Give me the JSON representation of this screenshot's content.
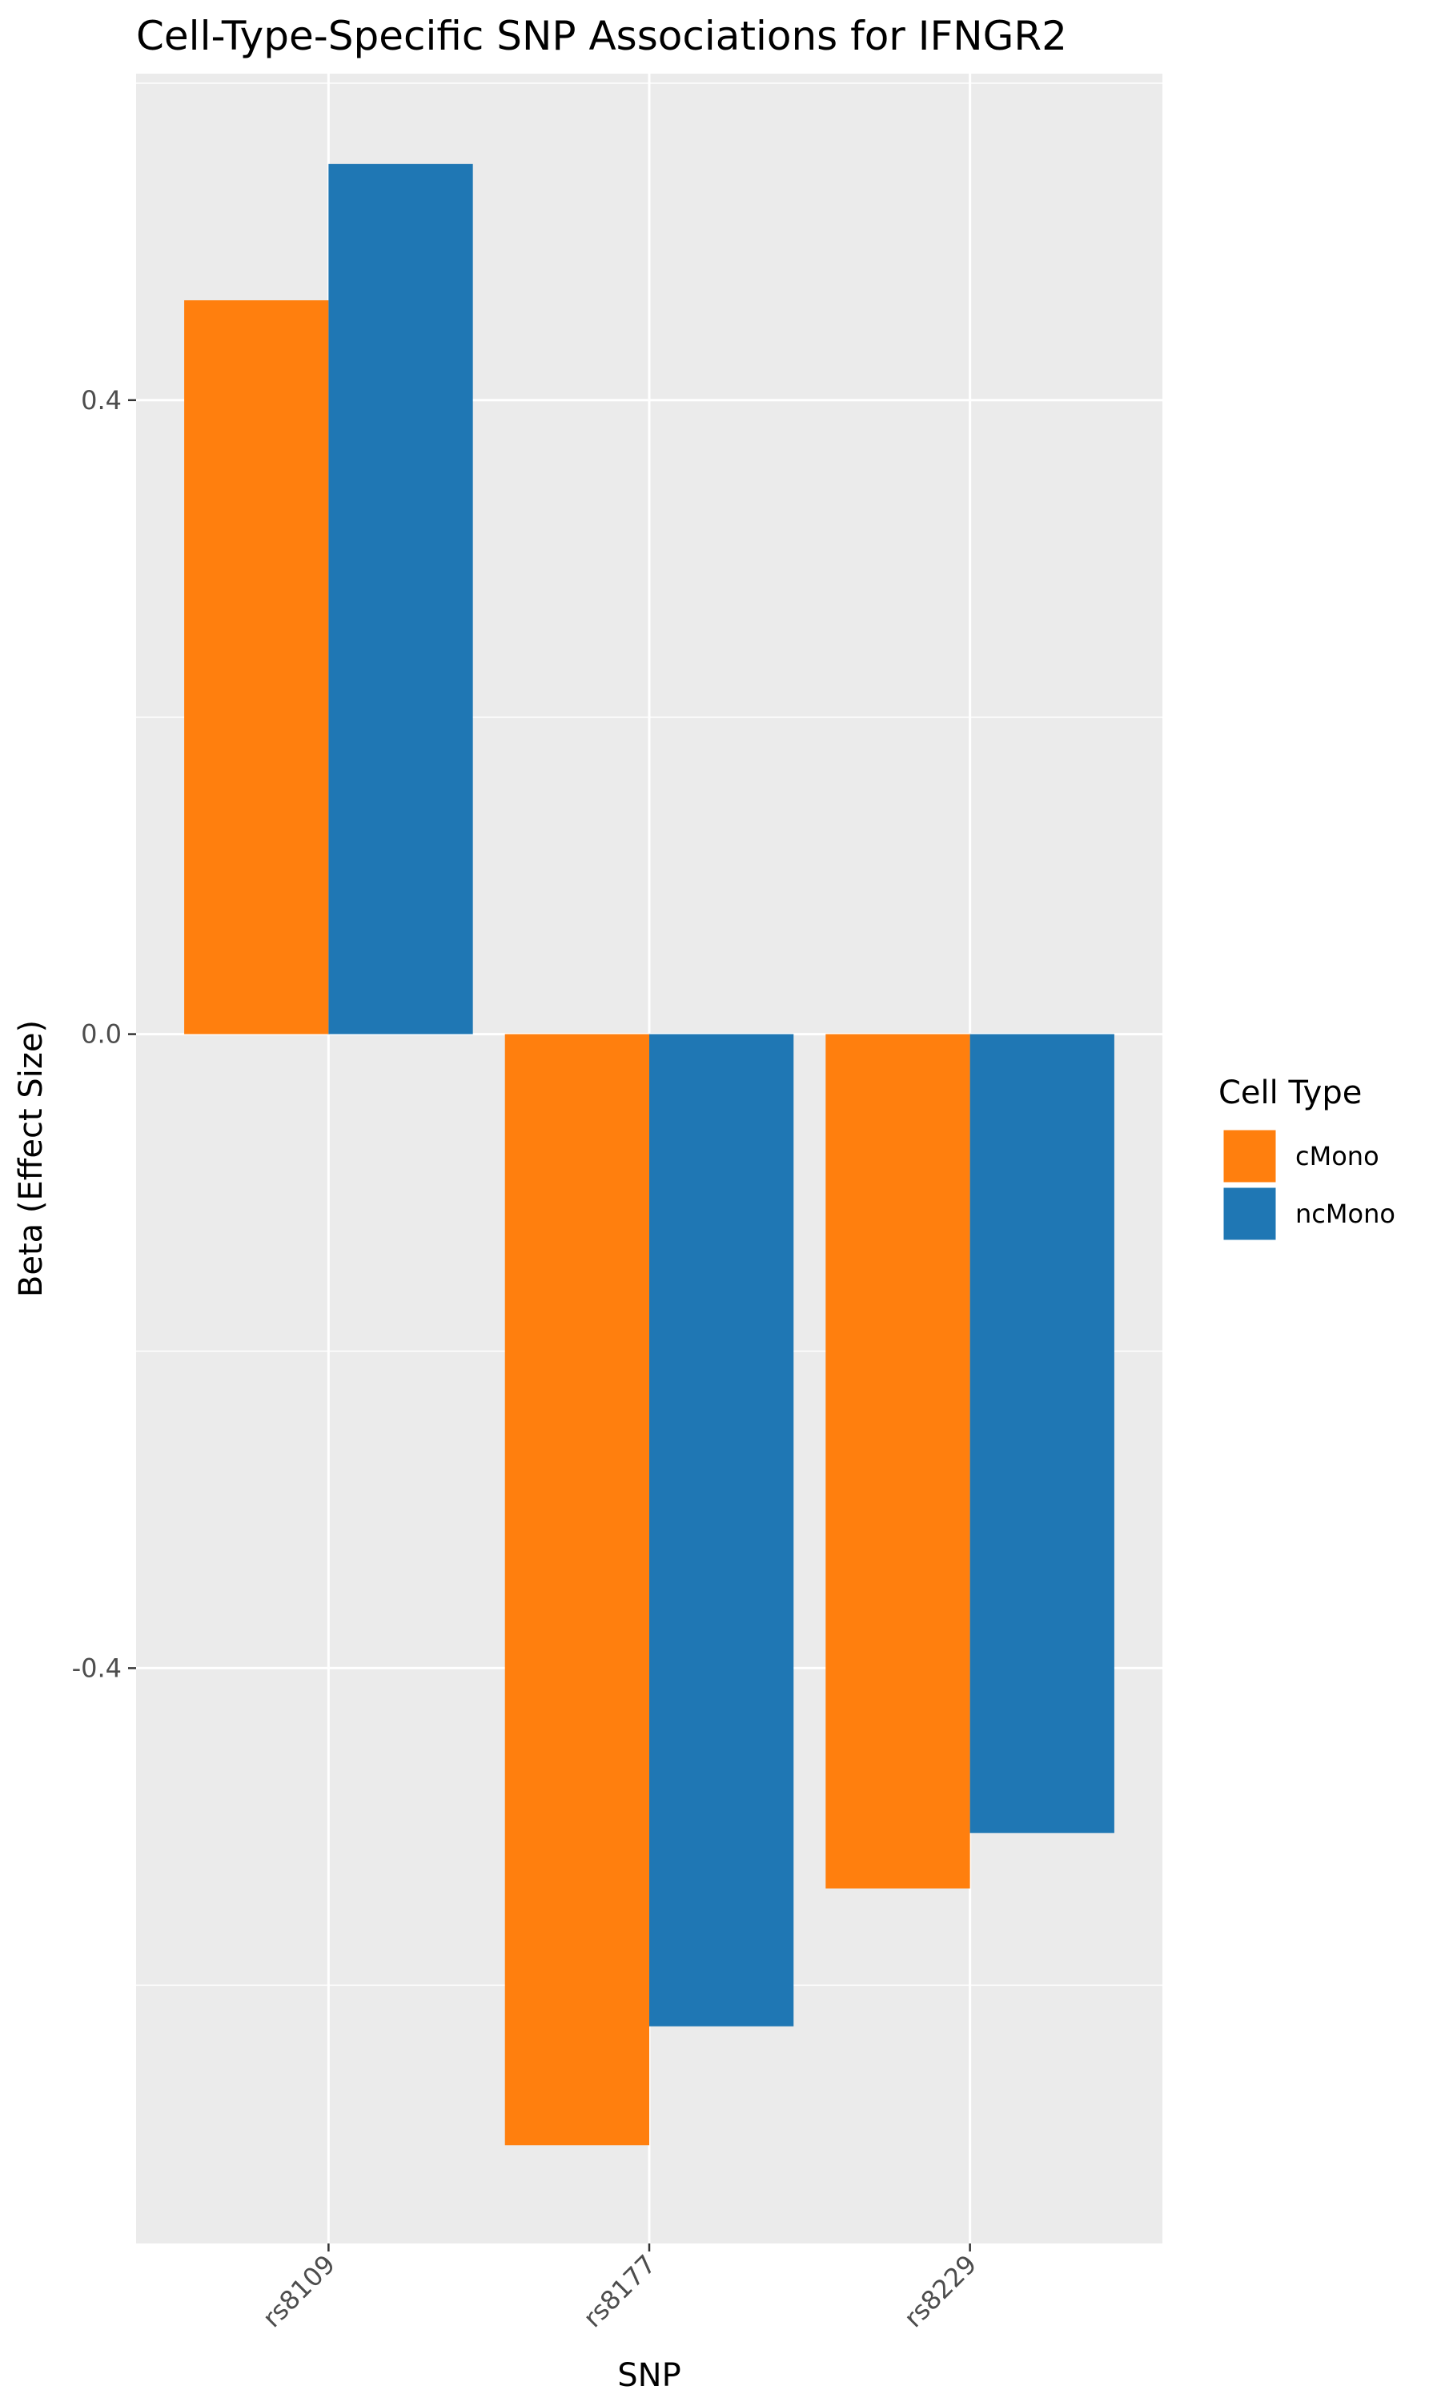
{
  "chart_data": {
    "type": "bar",
    "title": "Cell-Type-Specific SNP Associations for  IFNGR2",
    "xlabel": "SNP",
    "ylabel": "Beta (Effect Size)",
    "categories": [
      "rs8109",
      "rs8177",
      "rs8229"
    ],
    "series": [
      {
        "name": "cMono",
        "values": [
          0.463,
          -0.701,
          -0.539
        ],
        "color": "#ff7f0e"
      },
      {
        "name": "ncMono",
        "values": [
          0.549,
          -0.626,
          -0.504
        ],
        "color": "#1f77b4"
      }
    ],
    "ylim": [
      -0.763,
      0.606
    ],
    "yticks": [
      0.4,
      0.0,
      -0.4
    ],
    "ytick_labels": [
      "0.4",
      "0.0",
      "-0.4"
    ],
    "grid": true,
    "legend": {
      "title": "Cell Type",
      "position": "right"
    },
    "colors": {
      "panel_background": "#ebebeb",
      "grid": "#ffffff"
    }
  }
}
